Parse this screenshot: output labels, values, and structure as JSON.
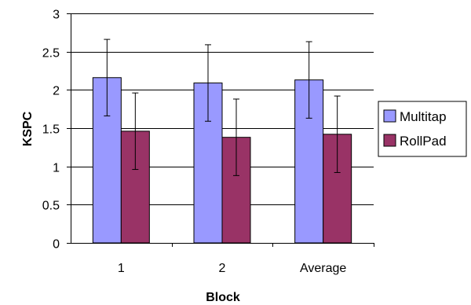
{
  "chart_data": {
    "type": "bar",
    "xlabel": "Block",
    "ylabel": "KSPC",
    "categories": [
      "1",
      "2",
      "Average"
    ],
    "ylim": [
      0,
      3
    ],
    "yticks": [
      "0",
      "0.5",
      "1",
      "1.5",
      "2",
      "2.5",
      "3"
    ],
    "grid": true,
    "legend_position": "right",
    "series": [
      {
        "name": "Multitap",
        "color": "#9999FF",
        "values": [
          2.16,
          2.09,
          2.13
        ],
        "error": [
          0.5,
          0.5,
          0.5
        ]
      },
      {
        "name": "RollPad",
        "color": "#993366",
        "values": [
          1.46,
          1.38,
          1.42
        ],
        "error": [
          0.5,
          0.5,
          0.5
        ]
      }
    ]
  }
}
